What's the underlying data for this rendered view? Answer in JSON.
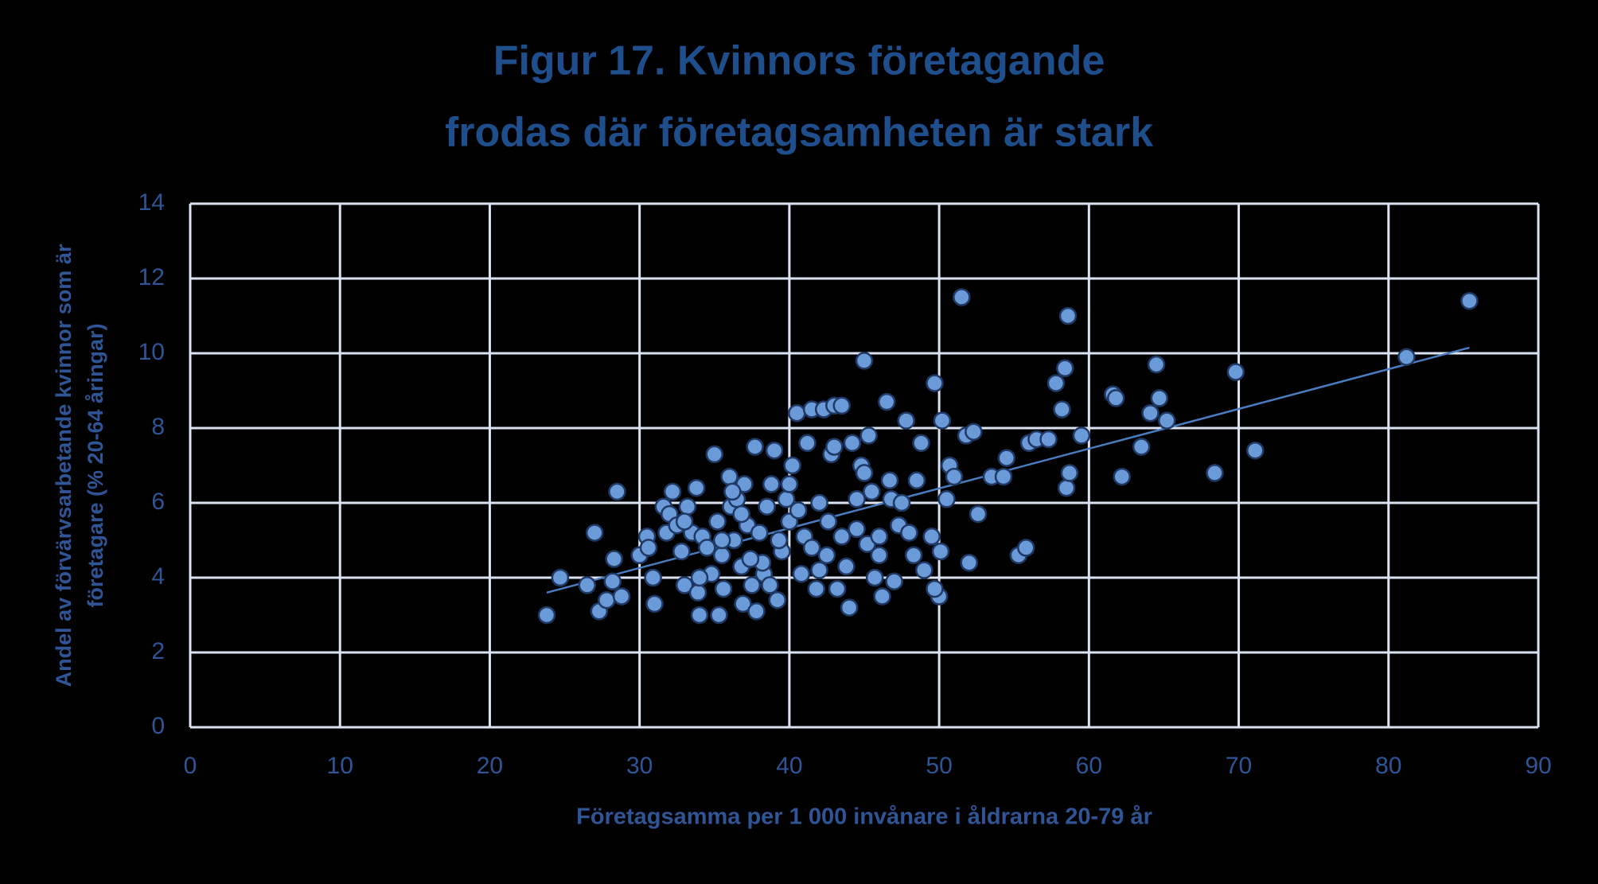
{
  "chart_data": {
    "type": "scatter",
    "title": [
      "Figur 17. Kvinnors företagande",
      "frodas där företagsamheten är stark"
    ],
    "xlabel": "Företagsamma per 1 000 invånare i åldrarna 20-79 år",
    "ylabel": [
      "Andel av förvärvsarbetande kvinnor som är",
      "företagare  (% 20-64 åringar)"
    ],
    "xlim": [
      0,
      90
    ],
    "xticks": [
      0,
      10,
      20,
      30,
      40,
      50,
      60,
      70,
      80,
      90
    ],
    "ylim": [
      0,
      14
    ],
    "yticks": [
      0,
      2,
      4,
      6,
      8,
      10,
      12,
      14
    ],
    "grid": true,
    "color": "#6b9ad8",
    "edge_color": "#1f3864",
    "trendline": {
      "x": [
        23.8,
        85.4
      ],
      "y": [
        3.6,
        10.15
      ],
      "color": "#4a7cc0"
    },
    "x": [
      23.8,
      24.7,
      26.5,
      27.0,
      27.3,
      27.8,
      28.3,
      28.5,
      28.2,
      28.8,
      30.0,
      30.5,
      30.6,
      30.9,
      31.0,
      31.6,
      31.8,
      32.0,
      32.2,
      32.5,
      32.8,
      33.0,
      33.2,
      33.5,
      33.8,
      33.9,
      34.0,
      34.2,
      34.5,
      34.8,
      35.0,
      35.2,
      35.3,
      35.5,
      35.6,
      36.0,
      36.1,
      36.3,
      36.5,
      36.8,
      36.9,
      37.0,
      37.2,
      37.5,
      37.7,
      37.8,
      38.0,
      38.3,
      38.5,
      38.8,
      39.0,
      39.2,
      39.5,
      39.8,
      40.0,
      40.2,
      40.5,
      40.8,
      41.0,
      41.2,
      41.5,
      41.8,
      42.0,
      42.3,
      42.5,
      42.8,
      43.0,
      43.2,
      43.5,
      43.8,
      44.0,
      44.2,
      44.5,
      44.8,
      45.0,
      45.2,
      45.3,
      45.5,
      45.7,
      46.0,
      46.2,
      46.5,
      46.8,
      47.0,
      47.3,
      47.8,
      48.0,
      48.5,
      48.8,
      49.0,
      49.5,
      49.7,
      50.0,
      50.2,
      50.5,
      50.7,
      51.0,
      51.5,
      51.8,
      52.0,
      52.3,
      52.6,
      53.5,
      54.5,
      54.3,
      55.3,
      55.8,
      56.0,
      56.5,
      57.3,
      57.8,
      58.2,
      58.4,
      58.5,
      58.6,
      58.7,
      59.5,
      61.6,
      61.8,
      62.2,
      63.5,
      64.1,
      64.5,
      64.7,
      65.2,
      68.4,
      69.8,
      71.1,
      81.2,
      85.4,
      36.2,
      38.2,
      40.6,
      42.6,
      44.5,
      46.0,
      47.5,
      41.5,
      39.3,
      37.4,
      34.0,
      33.0,
      43.5,
      45.0,
      46.7,
      48.3,
      50.1,
      49.7,
      43.0,
      40.0,
      35.5,
      36.8,
      38.7,
      42.0
    ],
    "values": [
      3.0,
      4.0,
      3.8,
      5.2,
      3.1,
      3.4,
      4.5,
      6.3,
      3.9,
      3.5,
      4.6,
      5.1,
      4.8,
      4.0,
      3.3,
      5.9,
      5.2,
      5.7,
      6.3,
      5.4,
      4.7,
      3.8,
      5.9,
      5.2,
      6.4,
      3.6,
      3.0,
      5.1,
      4.8,
      4.1,
      7.3,
      5.5,
      3.0,
      4.6,
      3.7,
      6.7,
      5.9,
      5.0,
      6.1,
      4.3,
      3.3,
      6.5,
      5.4,
      3.8,
      7.5,
      3.1,
      5.2,
      4.1,
      5.9,
      6.5,
      7.4,
      3.4,
      4.7,
      6.1,
      5.5,
      7.0,
      8.4,
      4.1,
      5.1,
      7.6,
      8.5,
      3.7,
      6.0,
      8.5,
      4.6,
      7.3,
      8.6,
      3.7,
      8.6,
      4.3,
      3.2,
      7.6,
      5.3,
      7.0,
      9.8,
      4.9,
      7.8,
      6.3,
      4.0,
      5.1,
      3.5,
      8.7,
      6.1,
      3.9,
      5.4,
      8.2,
      5.2,
      6.6,
      7.6,
      4.2,
      5.1,
      9.2,
      3.5,
      8.2,
      6.1,
      7.0,
      6.7,
      11.5,
      7.8,
      4.4,
      7.9,
      5.7,
      6.7,
      7.2,
      6.7,
      4.6,
      4.8,
      7.6,
      7.7,
      7.7,
      9.2,
      8.5,
      9.6,
      6.4,
      11.0,
      6.8,
      7.8,
      8.9,
      8.8,
      6.7,
      7.5,
      8.4,
      9.7,
      8.8,
      8.2,
      6.8,
      9.5,
      7.4,
      9.9,
      11.4,
      6.3,
      4.4,
      5.8,
      5.5,
      6.1,
      4.6,
      6.0,
      4.8,
      5.0,
      4.5,
      4.0,
      5.5,
      5.1,
      6.8,
      6.6,
      4.6,
      4.7,
      3.7,
      7.5,
      6.5,
      5.0,
      5.7,
      3.8,
      4.2
    ]
  }
}
